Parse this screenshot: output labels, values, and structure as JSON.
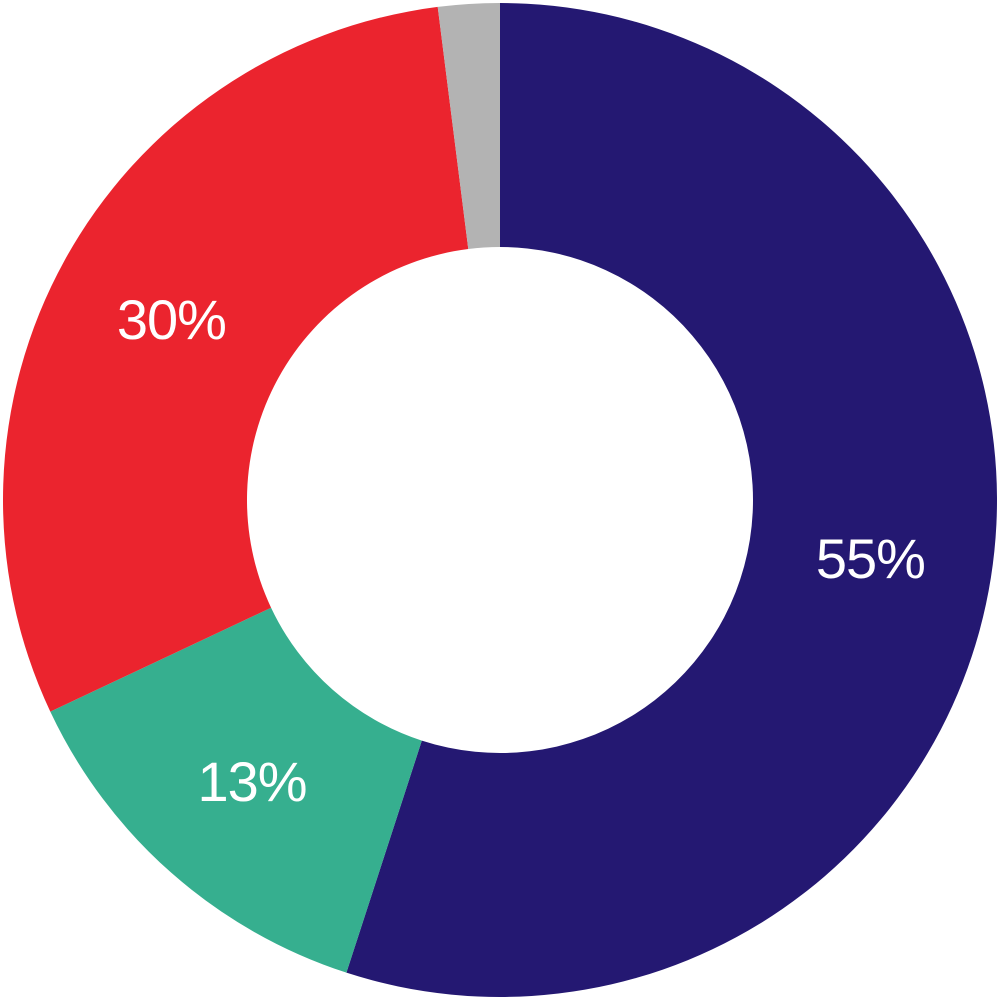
{
  "chart_data": {
    "type": "pie",
    "donut": true,
    "title": "",
    "legend": "none",
    "slices": [
      {
        "value": 55,
        "label": "55%",
        "color": "#241872"
      },
      {
        "value": 13,
        "label": "13%",
        "color": "#36AF8F"
      },
      {
        "value": 30,
        "label": "30%",
        "color": "#EB242E"
      },
      {
        "value": 2,
        "label": "",
        "color": "#B3B3B3"
      }
    ]
  }
}
